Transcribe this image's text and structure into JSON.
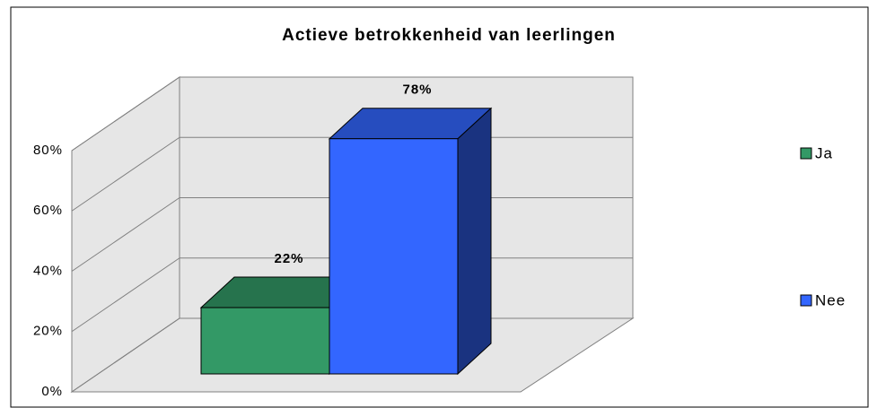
{
  "chart_data": {
    "type": "bar3d",
    "title": "Actieve betrokkenheid van leerlingen",
    "categories": [
      null
    ],
    "series": [
      {
        "name": "Ja",
        "color": "#339966",
        "values": [
          22
        ],
        "value_labels": [
          "22%"
        ]
      },
      {
        "name": "Nee",
        "color": "#3366ff",
        "values": [
          78
        ],
        "value_labels": [
          "78%"
        ]
      }
    ],
    "ylim": [
      0,
      80
    ],
    "yticks": [
      {
        "value": 0,
        "label": "0%"
      },
      {
        "value": 20,
        "label": "20%"
      },
      {
        "value": 40,
        "label": "40%"
      },
      {
        "value": 60,
        "label": "60%"
      },
      {
        "value": 80,
        "label": "80%"
      }
    ],
    "grid": true,
    "legend": "right"
  }
}
